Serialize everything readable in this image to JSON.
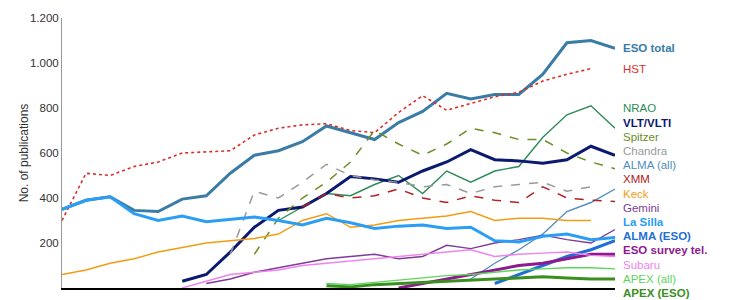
{
  "chart_data": {
    "type": "line",
    "y_label": "No. of publications",
    "categories": [
      null,
      null,
      null,
      null,
      null,
      null,
      null,
      null,
      null,
      null,
      null,
      null,
      null,
      null,
      null,
      null,
      null,
      null,
      null,
      null,
      null,
      null,
      null,
      null
    ],
    "ylim": [
      0,
      1200
    ],
    "yticks": [
      200,
      400,
      600,
      800,
      {
        "value": 1000,
        "label": "1.000"
      },
      {
        "value": 1200,
        "label": "1.200"
      }
    ],
    "grid": false,
    "tick_labels": "y",
    "series": [
      {
        "name": "ESO total",
        "color": "#3a7ca5",
        "line_style": "thick",
        "values": [
          350,
          390,
          405,
          345,
          340,
          395,
          410,
          510,
          590,
          610,
          650,
          720,
          690,
          660,
          735,
          785,
          865,
          840,
          860,
          860,
          950,
          1090,
          1100,
          1065
        ]
      },
      {
        "name": "HST",
        "color": "#d9302c",
        "line_style": "dotted",
        "values": [
          300,
          510,
          500,
          540,
          560,
          600,
          605,
          610,
          680,
          710,
          725,
          730,
          700,
          690,
          780,
          855,
          790,
          820,
          850,
          870,
          920,
          950,
          975,
          null
        ]
      },
      {
        "name": "NRAO",
        "color": "#2e8b57",
        "line_style": "solid",
        "values": [
          null,
          null,
          null,
          null,
          null,
          null,
          null,
          null,
          null,
          300,
          360,
          420,
          410,
          460,
          500,
          420,
          520,
          470,
          520,
          540,
          670,
          770,
          810,
          710
        ]
      },
      {
        "name": "VLT/VLTI",
        "color": "#0b1a6e",
        "line_style": "thick",
        "values": [
          null,
          null,
          null,
          null,
          null,
          30,
          60,
          160,
          270,
          345,
          360,
          420,
          495,
          485,
          470,
          520,
          560,
          615,
          570,
          565,
          555,
          570,
          630,
          590
        ]
      },
      {
        "name": "Spitzer",
        "color": "#6b8e23",
        "line_style": "dashed",
        "values": [
          null,
          null,
          null,
          null,
          null,
          null,
          null,
          null,
          150,
          310,
          400,
          470,
          560,
          700,
          640,
          590,
          640,
          710,
          690,
          660,
          660,
          600,
          560,
          530
        ]
      },
      {
        "name": "ALMA (all)",
        "color": "#4f8fbf",
        "line_style": "solid",
        "values": [
          null,
          null,
          null,
          null,
          null,
          null,
          null,
          null,
          null,
          null,
          null,
          null,
          null,
          null,
          null,
          null,
          null,
          40,
          110,
          170,
          240,
          340,
          380,
          440
        ]
      },
      {
        "name": "Chandra",
        "color": "#9a9a9a",
        "line_style": "dashed",
        "values": [
          null,
          null,
          null,
          null,
          null,
          null,
          null,
          150,
          430,
          400,
          470,
          550,
          500,
          480,
          470,
          450,
          460,
          420,
          450,
          460,
          470,
          430,
          450,
          null
        ]
      },
      {
        "name": "XMM",
        "color": "#b22222",
        "line_style": "dashed",
        "values": [
          null,
          null,
          null,
          null,
          null,
          null,
          null,
          null,
          null,
          null,
          360,
          420,
          400,
          410,
          440,
          400,
          380,
          410,
          390,
          380,
          450,
          400,
          390,
          385
        ]
      },
      {
        "name": "Keck",
        "color": "#f39c12",
        "line_style": "solid",
        "values": [
          60,
          80,
          110,
          130,
          160,
          180,
          200,
          210,
          220,
          240,
          300,
          330,
          270,
          280,
          300,
          310,
          320,
          340,
          300,
          310,
          310,
          300,
          300,
          null
        ]
      },
      {
        "name": "Gemini",
        "color": "#7d3c98",
        "line_style": "solid",
        "values": [
          null,
          null,
          null,
          null,
          null,
          null,
          20,
          40,
          70,
          90,
          110,
          130,
          140,
          150,
          130,
          140,
          190,
          175,
          200,
          215,
          235,
          215,
          200,
          260
        ]
      },
      {
        "name": "ALMA (ESO)",
        "color": "#1f6fd6",
        "line_style": "thick",
        "values": [
          null,
          null,
          null,
          null,
          null,
          null,
          null,
          null,
          null,
          null,
          null,
          null,
          null,
          null,
          null,
          null,
          null,
          null,
          20,
          60,
          100,
          140,
          170,
          210
        ]
      },
      {
        "name": "La Silla",
        "color": "#2a9df4",
        "line_style": "thick",
        "values": [
          350,
          390,
          405,
          330,
          300,
          320,
          295,
          305,
          315,
          300,
          280,
          310,
          290,
          265,
          275,
          280,
          265,
          270,
          210,
          205,
          230,
          240,
          215,
          225
        ]
      },
      {
        "name": "ESO survey tel.",
        "color": "#8e1a8e",
        "line_style": "thick",
        "values": [
          null,
          null,
          null,
          null,
          null,
          null,
          null,
          null,
          null,
          null,
          null,
          null,
          null,
          null,
          0,
          20,
          40,
          60,
          80,
          100,
          110,
          130,
          150,
          150
        ]
      },
      {
        "name": "Subaru",
        "color": "#ee82ee",
        "line_style": "solid",
        "values": [
          null,
          null,
          null,
          null,
          null,
          0,
          30,
          60,
          70,
          80,
          100,
          110,
          120,
          130,
          140,
          150,
          160,
          170,
          140,
          150,
          155,
          160,
          145,
          140
        ]
      },
      {
        "name": "APEX (all)",
        "color": "#5cd65c",
        "line_style": "solid",
        "values": [
          null,
          null,
          null,
          null,
          null,
          null,
          null,
          null,
          null,
          null,
          null,
          20,
          15,
          25,
          35,
          45,
          55,
          60,
          70,
          80,
          85,
          90,
          90,
          85
        ]
      },
      {
        "name": "APEX (ESO)",
        "color": "#3a8f1f",
        "line_style": "thick",
        "values": [
          null,
          null,
          null,
          null,
          null,
          null,
          null,
          null,
          null,
          null,
          null,
          10,
          5,
          15,
          20,
          25,
          30,
          35,
          40,
          45,
          50,
          45,
          40,
          40
        ]
      }
    ]
  }
}
